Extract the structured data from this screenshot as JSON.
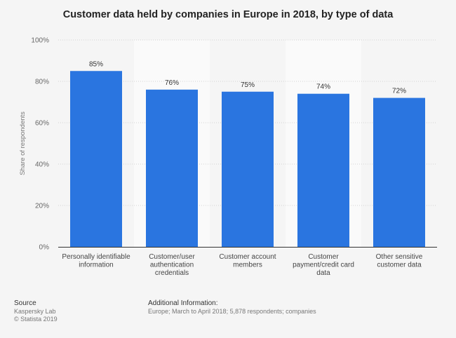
{
  "chart_data": {
    "type": "bar",
    "title": "Customer data held by companies in Europe in 2018, by type of data",
    "xlabel": "",
    "ylabel": "Share of respondents",
    "ylim": [
      0,
      100
    ],
    "y_ticks": [
      "0%",
      "20%",
      "40%",
      "60%",
      "80%",
      "100%"
    ],
    "categories": [
      [
        "Personally identifiable",
        "information"
      ],
      [
        "Customer/user",
        "authentication",
        "credentials"
      ],
      [
        "Customer account",
        "members"
      ],
      [
        "Customer",
        "payment/credit card",
        "data"
      ],
      [
        "Other sensitive",
        "customer data"
      ]
    ],
    "values": [
      85,
      76,
      75,
      74,
      72
    ],
    "value_labels": [
      "85%",
      "76%",
      "75%",
      "74%",
      "72%"
    ],
    "grid": true,
    "bar_color": "#2a75e0"
  },
  "footer": {
    "source_heading": "Source",
    "source_line1": "Kaspersky Lab",
    "source_line2": "© Statista 2019",
    "info_heading": "Additional Information:",
    "info_text": "Europe; March to April 2018; 5,878 respondents; companies"
  }
}
